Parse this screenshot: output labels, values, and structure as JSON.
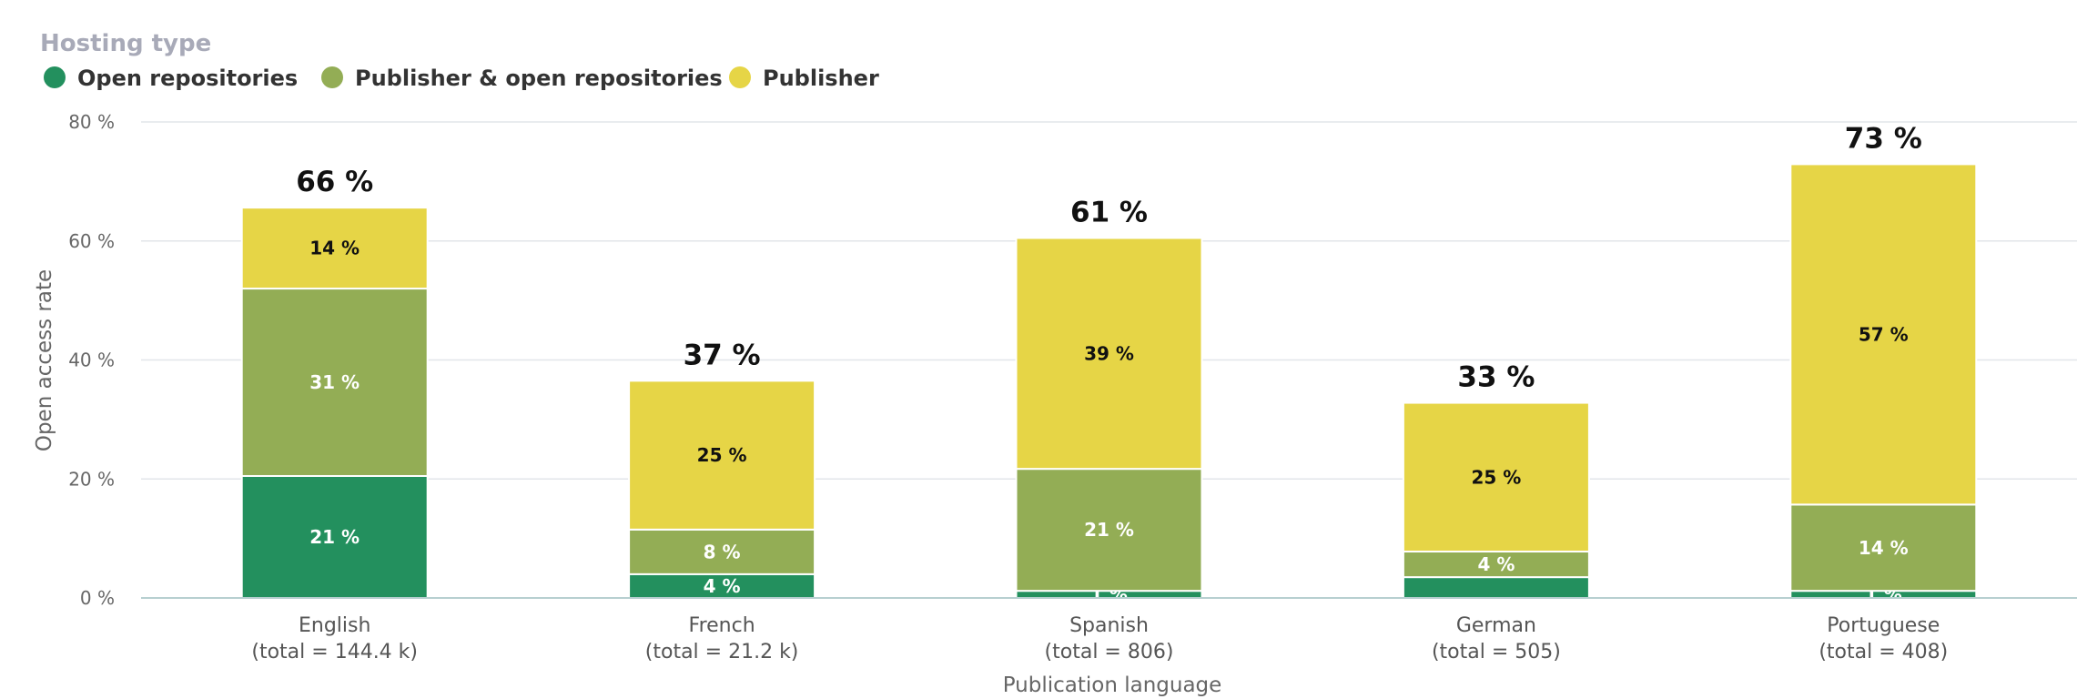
{
  "chart_data": {
    "type": "bar",
    "stacked": true,
    "legend_title": "Hosting type",
    "legend_placement": "top-left",
    "xlabel": "Publication language",
    "ylabel": "Open access rate",
    "ylim": [
      0,
      80
    ],
    "yticks": [
      0,
      20,
      40,
      60,
      80
    ],
    "ytick_labels": [
      "0 %",
      "20 %",
      "40 %",
      "60 %",
      "80 %"
    ],
    "grid": true,
    "categories": [
      "English",
      "French",
      "Spanish",
      "German",
      "Portuguese"
    ],
    "category_subtitles": [
      "(total = 144.4 k)",
      "(total = 21.2 k)",
      "(total = 806)",
      "(total = 505)",
      "(total = 408)"
    ],
    "series": [
      {
        "name": "Open repositories",
        "color": "#23905e",
        "label_color": "#ffffff",
        "values": [
          20.5,
          4,
          1.2,
          3.5,
          1.2
        ],
        "labels": [
          "21 %",
          "4 %",
          "1 %",
          "",
          "1 %"
        ]
      },
      {
        "name": "Publisher & open repositories",
        "color": "#93ad55",
        "label_color": "#ffffff",
        "values": [
          31.5,
          7.5,
          20.5,
          4.3,
          14.5
        ],
        "labels": [
          "31 %",
          "8 %",
          "21 %",
          "4 %",
          "14 %"
        ]
      },
      {
        "name": "Publisher",
        "color": "#e6d546",
        "label_color": "#111111",
        "values": [
          13.6,
          25,
          38.8,
          25,
          57.2
        ],
        "labels": [
          "14 %",
          "25 %",
          "39 %",
          "25 %",
          "57 %"
        ]
      }
    ],
    "totals": [
      65.6,
      36.5,
      60.5,
      32.8,
      72.9
    ],
    "total_labels": [
      "66 %",
      "37 %",
      "61 %",
      "33 %",
      "73 %"
    ]
  }
}
